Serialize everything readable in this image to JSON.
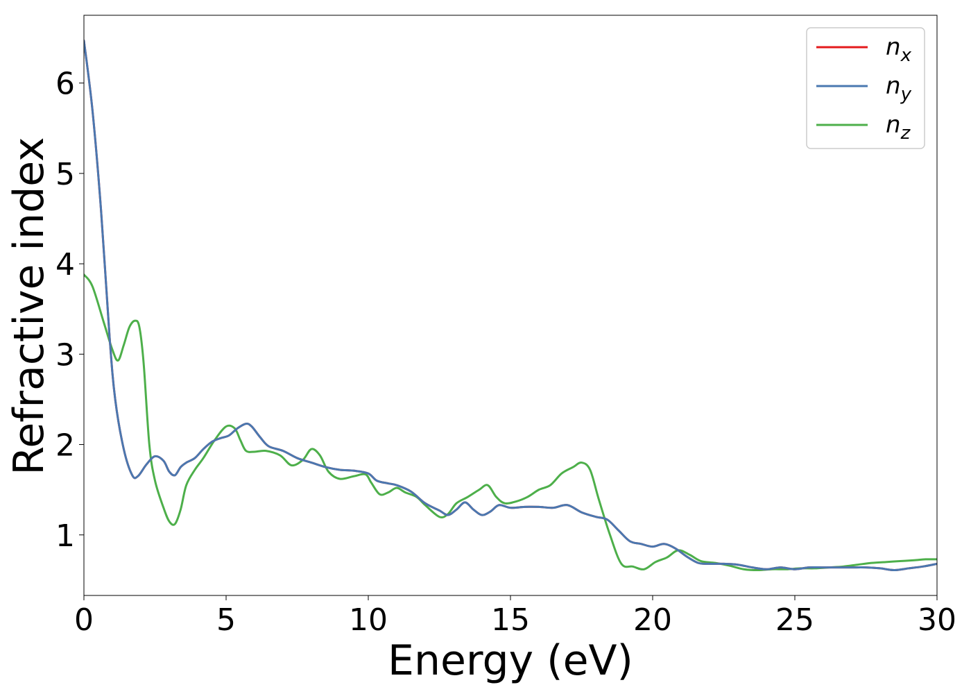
{
  "chart_data": {
    "type": "line",
    "title": "",
    "xlabel": "Energy (eV)",
    "ylabel": "Refractive index",
    "xlim": [
      0,
      30
    ],
    "ylim": [
      0.33,
      6.75
    ],
    "xticks": [
      0,
      5,
      10,
      15,
      20,
      25,
      30
    ],
    "yticks": [
      1,
      2,
      3,
      4,
      5,
      6
    ],
    "grid": false,
    "legend_position": "top-right",
    "series": [
      {
        "name": "n_x",
        "legend_base": "n",
        "legend_sub": "x",
        "color": "#e41a1c",
        "x": [
          0,
          0.3,
          0.6,
          0.9,
          1.1,
          1.4,
          1.7,
          1.9,
          2.2,
          2.5,
          2.8,
          3.0,
          3.2,
          3.4,
          3.6,
          3.9,
          4.2,
          4.5,
          4.8,
          5.1,
          5.4,
          5.7,
          5.9,
          6.2,
          6.5,
          7.0,
          7.5,
          8.0,
          8.5,
          9.0,
          9.5,
          10.0,
          10.3,
          10.7,
          11.0,
          11.5,
          12.0,
          12.5,
          12.8,
          13.1,
          13.4,
          13.7,
          14.0,
          14.3,
          14.6,
          15.0,
          15.5,
          16.0,
          16.5,
          17.0,
          17.5,
          18.0,
          18.4,
          18.8,
          19.2,
          19.6,
          20.0,
          20.4,
          20.8,
          21.2,
          21.6,
          22.0,
          22.5,
          23.0,
          23.5,
          24.0,
          24.5,
          25.0,
          25.5,
          26.0,
          26.5,
          27.0,
          27.5,
          28.0,
          28.5,
          29.0,
          29.5,
          30.0
        ],
        "y": [
          6.47,
          5.7,
          4.6,
          3.2,
          2.5,
          1.95,
          1.66,
          1.65,
          1.78,
          1.87,
          1.82,
          1.7,
          1.66,
          1.75,
          1.8,
          1.85,
          1.95,
          2.03,
          2.07,
          2.1,
          2.18,
          2.23,
          2.2,
          2.08,
          1.98,
          1.93,
          1.85,
          1.8,
          1.75,
          1.72,
          1.71,
          1.68,
          1.6,
          1.57,
          1.55,
          1.48,
          1.35,
          1.27,
          1.22,
          1.28,
          1.36,
          1.28,
          1.22,
          1.26,
          1.33,
          1.3,
          1.31,
          1.31,
          1.3,
          1.33,
          1.25,
          1.2,
          1.17,
          1.05,
          0.93,
          0.9,
          0.87,
          0.9,
          0.85,
          0.76,
          0.69,
          0.68,
          0.68,
          0.67,
          0.64,
          0.62,
          0.64,
          0.62,
          0.64,
          0.64,
          0.64,
          0.64,
          0.64,
          0.63,
          0.61,
          0.63,
          0.65,
          0.68
        ]
      },
      {
        "name": "n_y",
        "legend_base": "n",
        "legend_sub": "y",
        "color": "#4a78b0",
        "x": [
          0,
          0.3,
          0.6,
          0.9,
          1.1,
          1.4,
          1.7,
          1.9,
          2.2,
          2.5,
          2.8,
          3.0,
          3.2,
          3.4,
          3.6,
          3.9,
          4.2,
          4.5,
          4.8,
          5.1,
          5.4,
          5.7,
          5.9,
          6.2,
          6.5,
          7.0,
          7.5,
          8.0,
          8.5,
          9.0,
          9.5,
          10.0,
          10.3,
          10.7,
          11.0,
          11.5,
          12.0,
          12.5,
          12.8,
          13.1,
          13.4,
          13.7,
          14.0,
          14.3,
          14.6,
          15.0,
          15.5,
          16.0,
          16.5,
          17.0,
          17.5,
          18.0,
          18.4,
          18.8,
          19.2,
          19.6,
          20.0,
          20.4,
          20.8,
          21.2,
          21.6,
          22.0,
          22.5,
          23.0,
          23.5,
          24.0,
          24.5,
          25.0,
          25.5,
          26.0,
          26.5,
          27.0,
          27.5,
          28.0,
          28.5,
          29.0,
          29.5,
          30.0
        ],
        "y": [
          6.47,
          5.7,
          4.6,
          3.2,
          2.5,
          1.95,
          1.66,
          1.65,
          1.78,
          1.87,
          1.82,
          1.7,
          1.66,
          1.75,
          1.8,
          1.85,
          1.95,
          2.03,
          2.07,
          2.1,
          2.18,
          2.23,
          2.2,
          2.08,
          1.98,
          1.93,
          1.85,
          1.8,
          1.75,
          1.72,
          1.71,
          1.68,
          1.6,
          1.57,
          1.55,
          1.48,
          1.35,
          1.27,
          1.22,
          1.28,
          1.36,
          1.28,
          1.22,
          1.26,
          1.33,
          1.3,
          1.31,
          1.31,
          1.3,
          1.33,
          1.25,
          1.2,
          1.17,
          1.05,
          0.93,
          0.9,
          0.87,
          0.9,
          0.85,
          0.76,
          0.69,
          0.68,
          0.68,
          0.67,
          0.64,
          0.62,
          0.64,
          0.62,
          0.64,
          0.64,
          0.64,
          0.64,
          0.64,
          0.63,
          0.61,
          0.63,
          0.65,
          0.68
        ]
      },
      {
        "name": "n_z",
        "legend_base": "n",
        "legend_sub": "z",
        "color": "#4daf4a",
        "x": [
          0,
          0.3,
          0.7,
          1.0,
          1.2,
          1.4,
          1.6,
          1.8,
          1.95,
          2.1,
          2.3,
          2.5,
          2.8,
          3.0,
          3.2,
          3.4,
          3.6,
          3.9,
          4.2,
          4.6,
          5.0,
          5.3,
          5.5,
          5.7,
          6.0,
          6.4,
          6.9,
          7.3,
          7.7,
          8.0,
          8.3,
          8.6,
          9.0,
          9.5,
          9.9,
          10.1,
          10.4,
          10.7,
          11.0,
          11.3,
          11.7,
          12.0,
          12.5,
          12.8,
          13.1,
          13.5,
          13.9,
          14.2,
          14.5,
          14.8,
          15.2,
          15.6,
          16.0,
          16.4,
          16.8,
          17.2,
          17.5,
          17.8,
          18.1,
          18.5,
          18.9,
          19.3,
          19.7,
          20.1,
          20.5,
          20.9,
          21.3,
          21.7,
          22.2,
          22.7,
          23.2,
          23.7,
          24.2,
          24.7,
          25.2,
          25.7,
          26.2,
          26.7,
          27.2,
          27.7,
          28.2,
          28.7,
          29.2,
          29.6,
          30.0
        ],
        "y": [
          3.88,
          3.75,
          3.35,
          3.05,
          2.93,
          3.1,
          3.3,
          3.37,
          3.3,
          2.9,
          2.0,
          1.6,
          1.3,
          1.15,
          1.12,
          1.28,
          1.55,
          1.72,
          1.85,
          2.05,
          2.2,
          2.18,
          2.05,
          1.93,
          1.92,
          1.93,
          1.88,
          1.77,
          1.83,
          1.95,
          1.88,
          1.7,
          1.62,
          1.65,
          1.67,
          1.58,
          1.45,
          1.47,
          1.52,
          1.47,
          1.42,
          1.33,
          1.2,
          1.23,
          1.35,
          1.42,
          1.5,
          1.55,
          1.42,
          1.35,
          1.37,
          1.42,
          1.5,
          1.55,
          1.68,
          1.75,
          1.8,
          1.72,
          1.4,
          1.0,
          0.68,
          0.65,
          0.62,
          0.7,
          0.75,
          0.83,
          0.78,
          0.71,
          0.69,
          0.66,
          0.62,
          0.61,
          0.62,
          0.62,
          0.63,
          0.63,
          0.64,
          0.65,
          0.67,
          0.69,
          0.7,
          0.71,
          0.72,
          0.73,
          0.73
        ]
      }
    ]
  }
}
